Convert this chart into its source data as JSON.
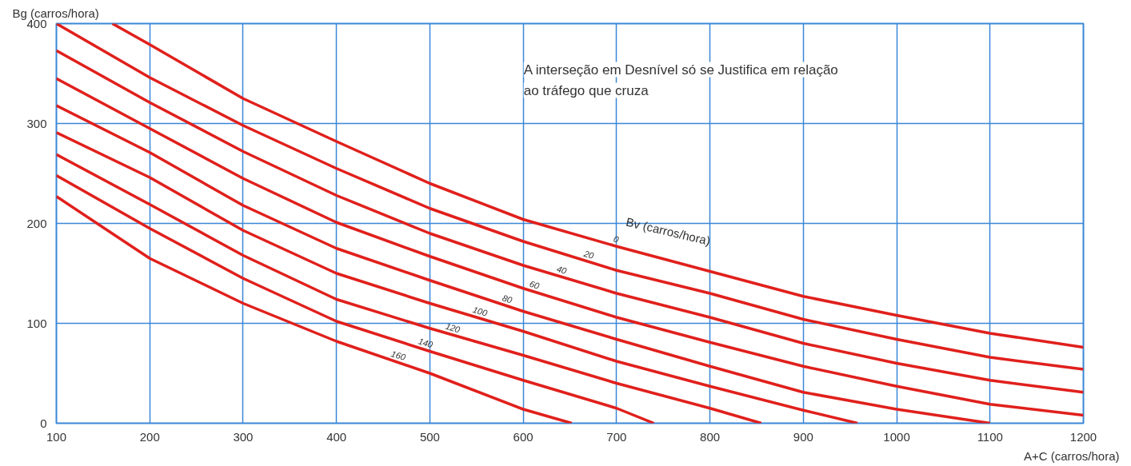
{
  "chart_data": {
    "type": "line",
    "xlabel": "A+C (carros/hora)",
    "ylabel": "Bg (carros/hora)",
    "xlim": [
      100,
      1200
    ],
    "ylim": [
      0,
      400
    ],
    "xticks": [
      100,
      200,
      300,
      400,
      500,
      600,
      700,
      800,
      900,
      1000,
      1100,
      1200
    ],
    "yticks": [
      0,
      100,
      200,
      300,
      400
    ],
    "grid": true,
    "legend": false,
    "marker": "none",
    "line_style": "solid",
    "series": [
      {
        "name": "0",
        "color": "#e0201c",
        "x": [
          160,
          200,
          300,
          400,
          500,
          600,
          700,
          800,
          900,
          1000,
          1100,
          1200
        ],
        "values": [
          400,
          379,
          325,
          282,
          240,
          204,
          177,
          152,
          127,
          108,
          90,
          76
        ]
      },
      {
        "name": "20",
        "color": "#e0201c",
        "x": [
          100,
          200,
          300,
          400,
          500,
          600,
          700,
          800,
          900,
          1000,
          1100,
          1200
        ],
        "values": [
          400,
          346,
          298,
          255,
          215,
          182,
          153,
          130,
          104,
          84,
          66,
          54
        ]
      },
      {
        "name": "40",
        "color": "#e0201c",
        "x": [
          100,
          200,
          300,
          400,
          500,
          600,
          700,
          800,
          900,
          1000,
          1100,
          1200
        ],
        "values": [
          373,
          321,
          272,
          228,
          190,
          158,
          130,
          106,
          80,
          60,
          43,
          31
        ]
      },
      {
        "name": "60",
        "color": "#e0201c",
        "x": [
          100,
          200,
          300,
          400,
          500,
          600,
          700,
          800,
          900,
          1000,
          1100,
          1200
        ],
        "values": [
          345,
          295,
          245,
          201,
          167,
          135,
          106,
          81,
          57,
          37,
          19,
          8
        ]
      },
      {
        "name": "80",
        "color": "#e0201c",
        "x": [
          100,
          200,
          300,
          400,
          500,
          600,
          700,
          800,
          900,
          1000,
          1100
        ],
        "values": [
          318,
          271,
          218,
          175,
          143,
          112,
          84,
          57,
          31,
          14,
          0
        ]
      },
      {
        "name": "100",
        "color": "#e0201c",
        "x": [
          100,
          200,
          300,
          400,
          500,
          600,
          700,
          800,
          900,
          958
        ],
        "values": [
          291,
          246,
          193,
          150,
          120,
          92,
          62,
          37,
          13,
          0
        ]
      },
      {
        "name": "120",
        "color": "#e0201c",
        "x": [
          100,
          200,
          300,
          400,
          500,
          600,
          700,
          800,
          855
        ],
        "values": [
          269,
          219,
          168,
          124,
          95,
          68,
          40,
          15,
          0
        ]
      },
      {
        "name": "140",
        "color": "#e0201c",
        "x": [
          100,
          200,
          300,
          400,
          500,
          600,
          700,
          740
        ],
        "values": [
          248,
          195,
          145,
          102,
          72,
          43,
          15,
          0
        ]
      },
      {
        "name": "160",
        "color": "#e0201c",
        "x": [
          100,
          200,
          300,
          400,
          500,
          600,
          652
        ],
        "values": [
          227,
          165,
          120,
          82,
          50,
          14,
          0
        ]
      }
    ],
    "annotations": [
      "A interseção em Desnível só se Justifica em relação ao tráfego que cruza",
      "Bv (carros/hora)"
    ]
  }
}
